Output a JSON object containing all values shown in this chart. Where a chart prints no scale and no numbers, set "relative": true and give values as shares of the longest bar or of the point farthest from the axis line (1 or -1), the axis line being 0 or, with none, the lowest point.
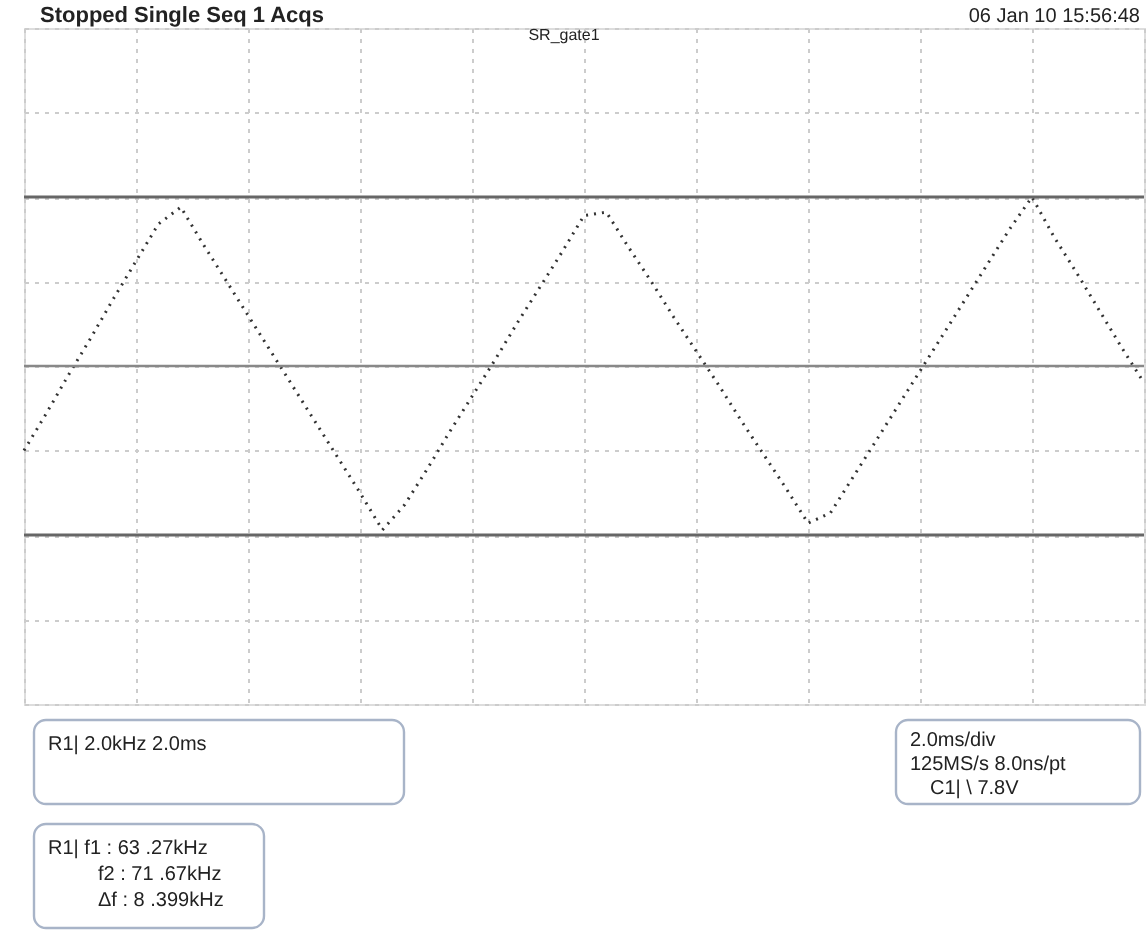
{
  "chart_data": {
    "type": "line",
    "relative": true,
    "categories": [
      null,
      null,
      null,
      null,
      null,
      null,
      null,
      null,
      null,
      null,
      null,
      null,
      null,
      null,
      null,
      null,
      null,
      null,
      null,
      null,
      null,
      null,
      null,
      null,
      null,
      null,
      null,
      null,
      null,
      null,
      null,
      null,
      null,
      null,
      null,
      null,
      null,
      null,
      null,
      null,
      null,
      null,
      null,
      null,
      null,
      null,
      null,
      null,
      null,
      null,
      null
    ],
    "series": [
      {
        "color": "#333333",
        "values": [
          -0.5,
          -0.28,
          -0.05,
          0.17,
          0.4,
          0.62,
          0.84,
          0.94,
          0.72,
          0.51,
          0.3,
          0.09,
          -0.12,
          -0.33,
          -0.54,
          -0.75,
          -0.97,
          -0.82,
          -0.61,
          -0.39,
          -0.18,
          0.03,
          0.25,
          0.46,
          0.67,
          0.89,
          0.91,
          0.7,
          0.5,
          0.29,
          0.09,
          -0.11,
          -0.32,
          -0.52,
          -0.72,
          -0.93,
          -0.87,
          -0.66,
          -0.45,
          -0.24,
          -0.03,
          0.18,
          0.39,
          0.6,
          0.81,
          1,
          0.76,
          0.55,
          0.33,
          0.11,
          -0.1
        ]
      }
    ],
    "tick_labels": false,
    "grid": true,
    "line_style": "dotted",
    "marker": "none",
    "ref_lines": [
      {
        "axis": "y",
        "value": 1,
        "label": null,
        "color": "#666666"
      },
      {
        "axis": "y",
        "value": -1,
        "label": null,
        "color": "#666666"
      }
    ],
    "annotations": [
      "Stopped Single Seq 1 Acqs",
      "06 Jan 10 15:56:48",
      "SR_gate1",
      "R1|  2.0kHz   2.0ms",
      "2.0ms/div",
      "125MS/s   8.0ns/pt",
      "C1| \\ 7.8V",
      "R1|  f1 :    63 .27kHz",
      "f2 :    71 .67kHz",
      "Δf :      8 .399kHz"
    ]
  }
}
